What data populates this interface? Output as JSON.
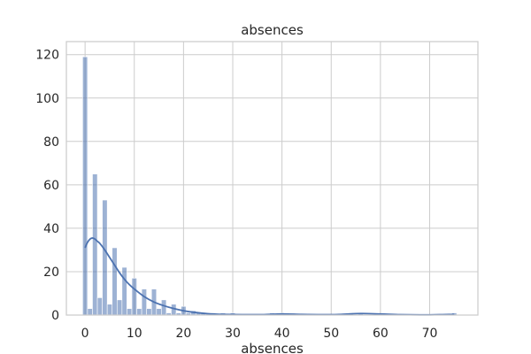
{
  "chart_data": {
    "type": "bar",
    "title": "absences",
    "xlabel": "absences",
    "ylabel": "",
    "xlim": [
      -3.8,
      79.8
    ],
    "ylim": [
      0,
      126
    ],
    "x_ticks": [
      0,
      10,
      20,
      30,
      40,
      50,
      60,
      70
    ],
    "y_ticks": [
      0,
      20,
      40,
      60,
      80,
      100,
      120
    ],
    "grid": true,
    "bin_width": 1,
    "bins": [
      {
        "x": 0,
        "count": 119
      },
      {
        "x": 1,
        "count": 3
      },
      {
        "x": 2,
        "count": 65
      },
      {
        "x": 3,
        "count": 8
      },
      {
        "x": 4,
        "count": 53
      },
      {
        "x": 5,
        "count": 5
      },
      {
        "x": 6,
        "count": 31
      },
      {
        "x": 7,
        "count": 7
      },
      {
        "x": 8,
        "count": 22
      },
      {
        "x": 9,
        "count": 3
      },
      {
        "x": 10,
        "count": 17
      },
      {
        "x": 11,
        "count": 3
      },
      {
        "x": 12,
        "count": 12
      },
      {
        "x": 13,
        "count": 3
      },
      {
        "x": 14,
        "count": 12
      },
      {
        "x": 15,
        "count": 3
      },
      {
        "x": 16,
        "count": 7
      },
      {
        "x": 17,
        "count": 1
      },
      {
        "x": 18,
        "count": 5
      },
      {
        "x": 19,
        "count": 1
      },
      {
        "x": 20,
        "count": 4
      },
      {
        "x": 21,
        "count": 1
      },
      {
        "x": 22,
        "count": 2
      },
      {
        "x": 23,
        "count": 1
      },
      {
        "x": 24,
        "count": 1
      },
      {
        "x": 25,
        "count": 1
      },
      {
        "x": 26,
        "count": 1
      },
      {
        "x": 28,
        "count": 1
      },
      {
        "x": 30,
        "count": 1
      },
      {
        "x": 38,
        "count": 1
      },
      {
        "x": 40,
        "count": 1
      },
      {
        "x": 54,
        "count": 1
      },
      {
        "x": 56,
        "count": 1
      },
      {
        "x": 75,
        "count": 1
      }
    ],
    "kde": {
      "x": [
        0,
        0.5,
        1,
        1.5,
        2,
        2.5,
        3,
        4,
        5,
        6,
        7,
        8,
        9,
        10,
        12,
        14,
        16,
        18,
        20,
        22,
        25,
        28,
        32,
        36,
        40,
        44,
        48,
        52,
        56,
        60,
        64,
        68,
        72,
        75
      ],
      "y": [
        31,
        33.5,
        35,
        35.5,
        35,
        34,
        33,
        30,
        26.5,
        23,
        19.5,
        16.5,
        14,
        12,
        8.5,
        6,
        4.3,
        3,
        2,
        1.3,
        0.6,
        0.3,
        0.2,
        0.2,
        0.5,
        0.3,
        0.2,
        0.3,
        0.7,
        0.5,
        0.2,
        0.1,
        0.2,
        0.3
      ]
    }
  }
}
